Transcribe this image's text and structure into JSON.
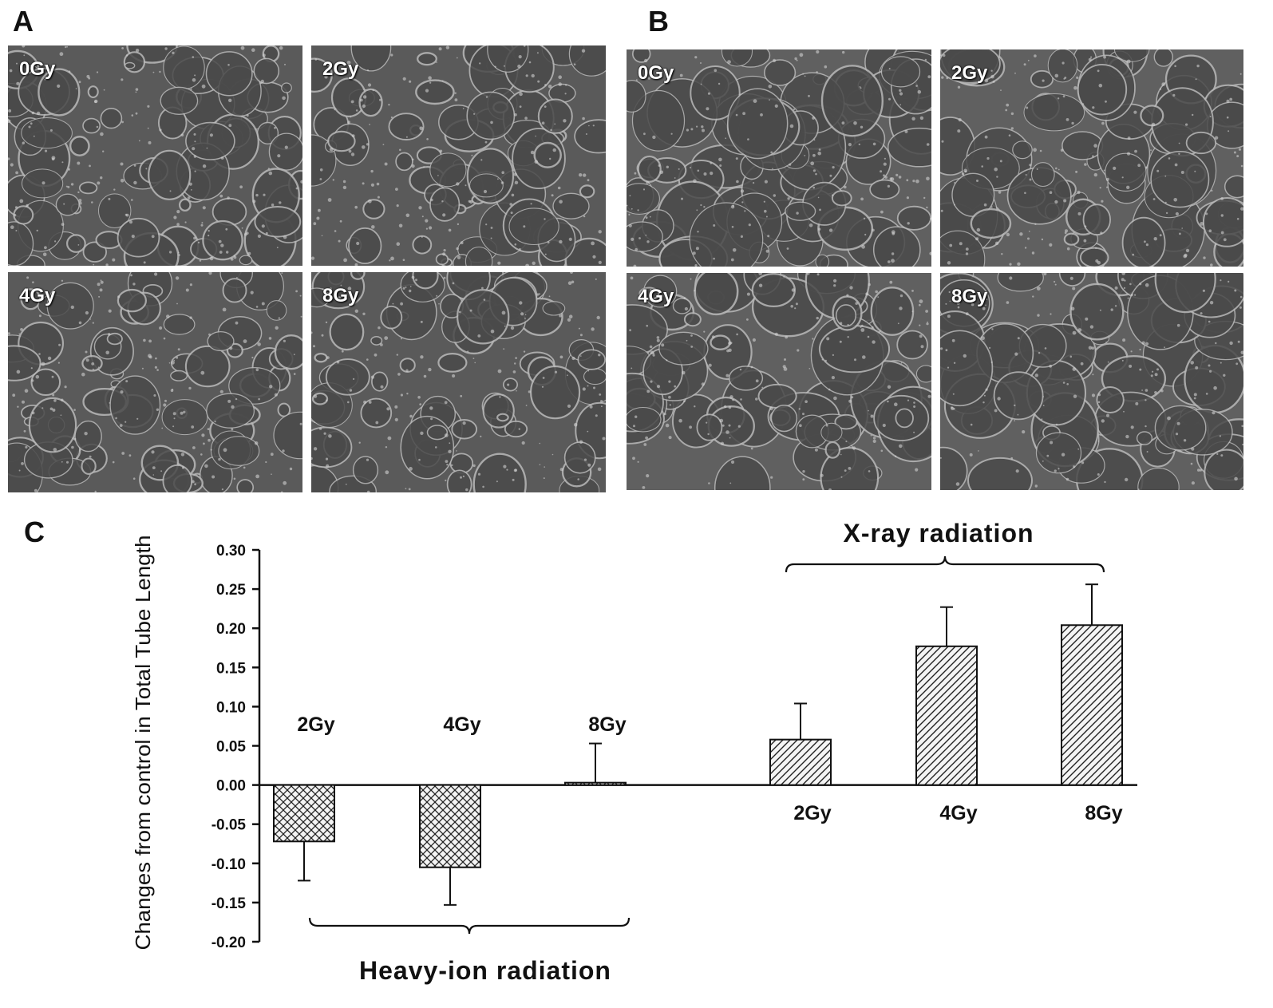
{
  "panels": {
    "a": {
      "letter": "A",
      "tiles": [
        {
          "label": "0Gy"
        },
        {
          "label": "2Gy"
        },
        {
          "label": "4Gy"
        },
        {
          "label": "8Gy"
        }
      ]
    },
    "b": {
      "letter": "B",
      "tiles": [
        {
          "label": "0Gy"
        },
        {
          "label": "2Gy"
        },
        {
          "label": "4Gy"
        },
        {
          "label": "8Gy"
        }
      ]
    },
    "c": {
      "letter": "C"
    }
  },
  "chart_data": {
    "type": "bar",
    "title": "",
    "ylabel": "Changes from control in Total Tube Length",
    "ylim": [
      -0.2,
      0.3
    ],
    "yticks": [
      "0.30",
      "0.25",
      "0.20",
      "0.15",
      "0.10",
      "0.05",
      "0.00",
      "-0.05",
      "-0.10",
      "-0.15",
      "-0.20"
    ],
    "grid": false,
    "groups": [
      {
        "name": "Heavy-ion radiation",
        "pattern": "crosshatch",
        "bars": [
          {
            "category": "2Gy",
            "value": -0.072,
            "error": 0.05
          },
          {
            "category": "4Gy",
            "value": -0.105,
            "error": 0.048
          },
          {
            "category": "8Gy",
            "value": 0.003,
            "error": 0.05
          }
        ]
      },
      {
        "name": "X-ray radiation",
        "pattern": "diagonal",
        "bars": [
          {
            "category": "2Gy",
            "value": 0.058,
            "error": 0.046
          },
          {
            "category": "4Gy",
            "value": 0.177,
            "error": 0.05
          },
          {
            "category": "8Gy",
            "value": 0.204,
            "error": 0.052
          }
        ]
      }
    ]
  }
}
